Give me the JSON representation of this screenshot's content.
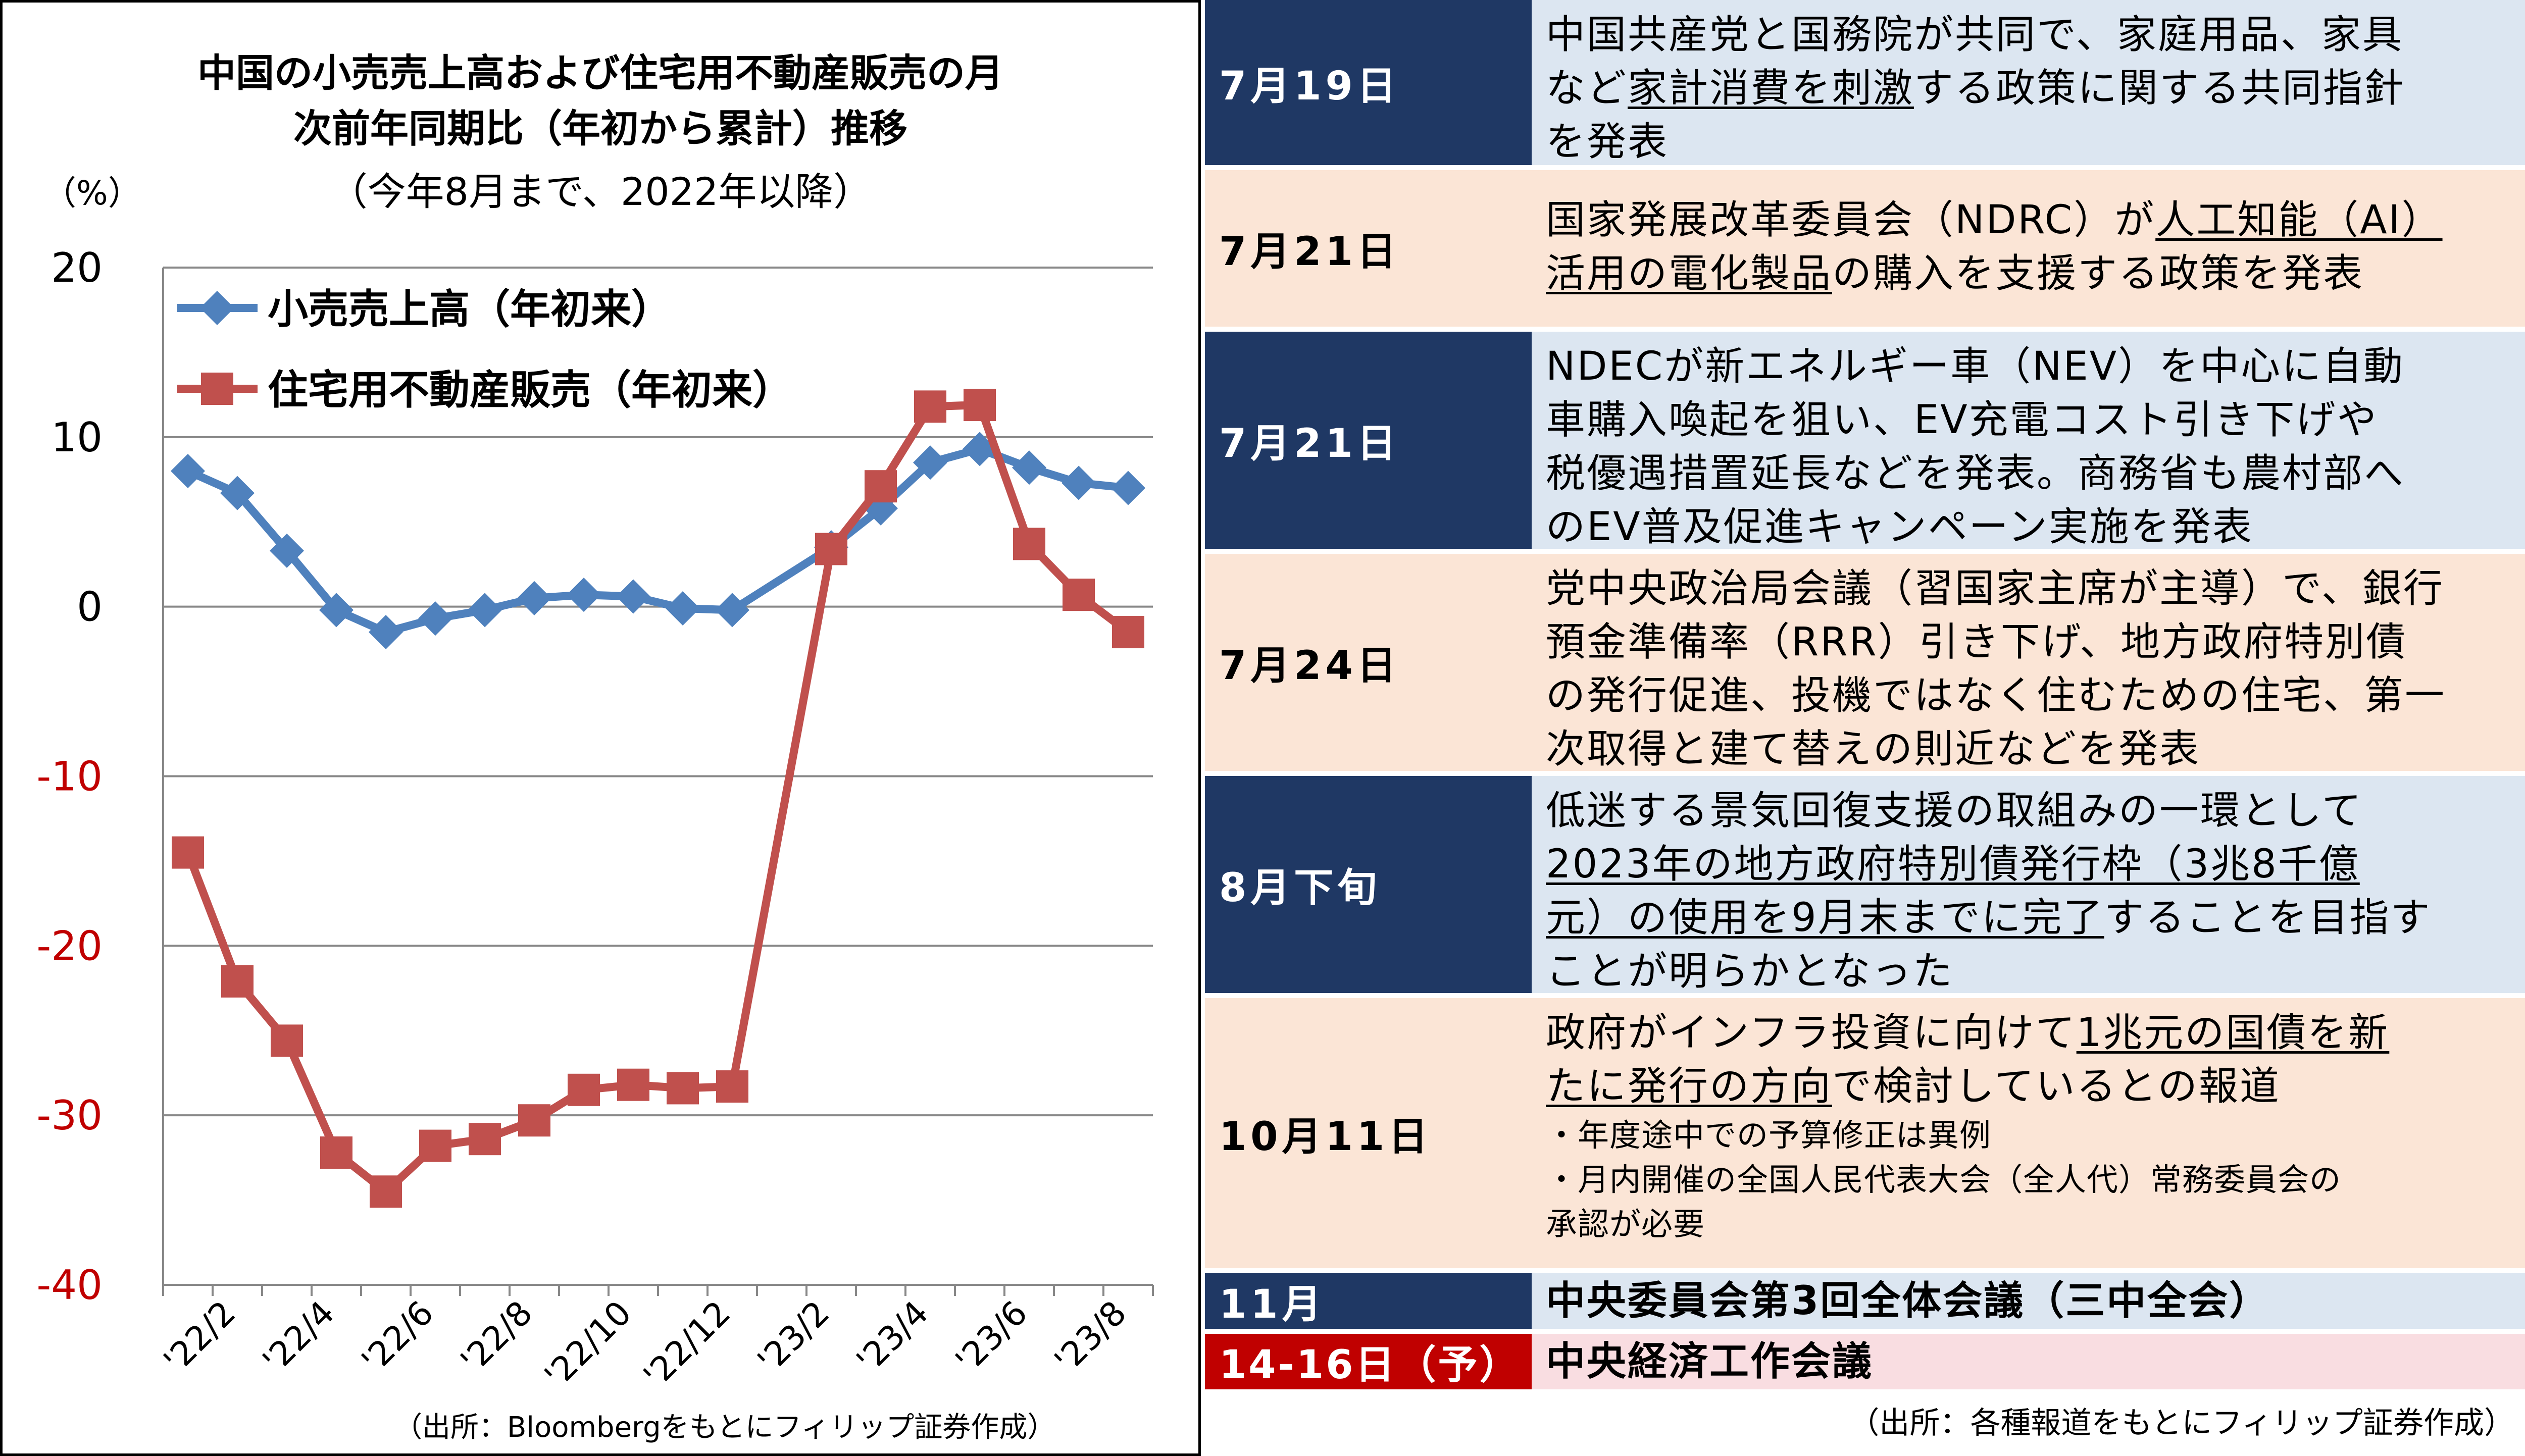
{
  "chart_data": {
    "type": "line",
    "title": "中国の小売売上高および住宅用不動産販売の月次前年同期比（年初から累計）推移",
    "subtitle": "（今年8月まで、2022年以降）",
    "ylabel": "（%）",
    "ylim": [
      -40,
      20
    ],
    "yticks": [
      "20",
      "10",
      "0",
      "-10",
      "-20",
      "-30",
      "-40"
    ],
    "xticks": [
      "'22/2",
      "'22/4",
      "'22/6",
      "'22/8",
      "'22/10",
      "'22/12",
      "'23/2",
      "'23/4",
      "'23/6",
      "'23/8"
    ],
    "x": [
      "'22/1",
      "'22/2",
      "'22/3",
      "'22/4",
      "'22/5",
      "'22/6",
      "'22/7",
      "'22/8",
      "'22/9",
      "'22/10",
      "'22/11",
      "'22/12",
      "'23/1",
      "'23/2",
      "'23/3",
      "'23/4",
      "'23/5",
      "'23/6",
      "'23/7",
      "'23/8"
    ],
    "grid": true,
    "legend": "top-left",
    "series": [
      {
        "name": "小売売上高（年初来）",
        "color": "#4F81BD",
        "marker": "diamond",
        "values": [
          8.0,
          6.7,
          3.3,
          -0.2,
          -1.5,
          -0.7,
          -0.2,
          0.5,
          0.7,
          0.6,
          -0.1,
          -0.2,
          null,
          3.5,
          5.8,
          8.5,
          9.3,
          8.2,
          7.3,
          7.0
        ]
      },
      {
        "name": "住宅用不動産販売（年初来）",
        "color": "#C0504D",
        "marker": "square",
        "values": [
          -14.5,
          -22.1,
          -25.6,
          -32.2,
          -34.5,
          -31.8,
          -31.4,
          -30.3,
          -28.5,
          -28.2,
          -28.4,
          -28.3,
          null,
          3.4,
          7.1,
          11.8,
          11.9,
          3.7,
          0.7,
          -1.5
        ]
      }
    ],
    "source": "（出所：Bloombergをもとにフィリップ証券作成）"
  },
  "table": {
    "source": "（出所：各種報道をもとにフィリップ証券作成）",
    "rows": [
      {
        "date": "7月19日",
        "l1": "中国共産党と国務院が共同で、家庭用品、家具",
        "l2a": "など",
        "l2u": "家計消費を刺激",
        "l2b": "する政策に関する共同指針",
        "l3": "を発表"
      },
      {
        "date": "7月21日",
        "l1a": "国家発展改革委員会（NDRC）が",
        "l1u": "人工知能（AI）",
        "l2u": "活用の電化製品",
        "l2b": "の購入を支援する政策を発表"
      },
      {
        "date": "7月21日",
        "l1": "NDECが新エネルギー車（NEV）を中心に自動",
        "l2": "車購入喚起を狙い、EV充電コスト引き下げや",
        "l3": "税優遇措置延長などを発表。商務省も農村部へ",
        "l4": "のEV普及促進キャンペーン実施を発表"
      },
      {
        "date": "7月24日",
        "l1": "党中央政治局会議（習国家主席が主導）で、銀行",
        "l2": "預金準備率（RRR）引き下げ、地方政府特別債",
        "l3": "の発行促進、投機ではなく住むための住宅、第一",
        "l4": "次取得と建て替えの則近などを発表"
      },
      {
        "date": "8月下旬",
        "l1": "低迷する景気回復支援の取組みの一環として",
        "l2u": "2023年の地方政府特別債発行枠（3兆8千億",
        "l3u": "元）の使用を9月末までに完了",
        "l3b": "することを目指す",
        "l4": "ことが明らかとなった"
      },
      {
        "date": "10月11日",
        "l1a": "政府がインフラ投資に向けて",
        "l1u": "1兆元の国債を新",
        "l2u": "たに発行の方向",
        "l2b": "で検討しているとの報道",
        "s1": "・年度途中での予算修正は異例",
        "s2": "・月内開催の全国人民代表大会（全人代）常務委員会の",
        "s3": "承認が必要"
      },
      {
        "date": "11月",
        "text": "中央委員会第3回全体会議（三中全会）"
      },
      {
        "date": "14-16日（予）",
        "text": "中央経済工作会議"
      }
    ]
  }
}
